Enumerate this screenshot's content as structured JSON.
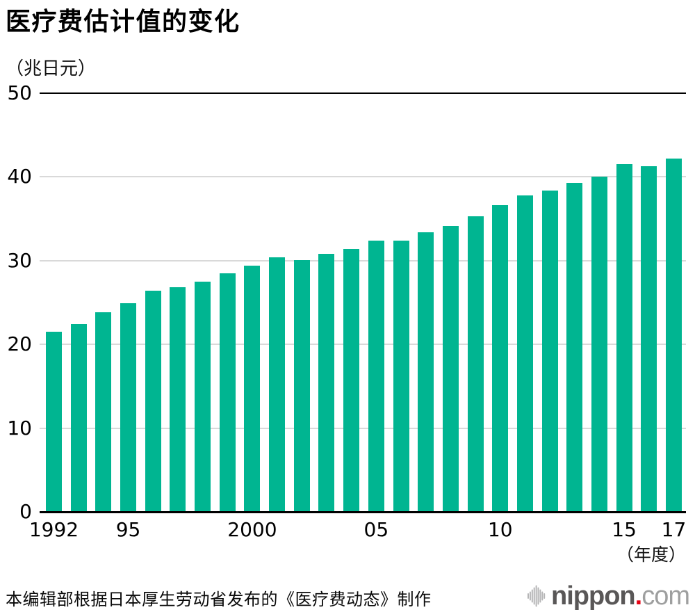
{
  "title": "医疗费估计值的变化",
  "unit_label": "（兆日元）",
  "x_axis_suffix": "（年度）",
  "footer": {
    "source": "本编辑部根据日本厚生劳动省发布的《医疗费动态》制作"
  },
  "logo": {
    "icon": "soundwave-icon",
    "name": "nippon",
    "dot": ".",
    "tld": "com",
    "colors": {
      "name": "#595757",
      "dot": "#e60012",
      "tld": "#9e9f9f",
      "icon": "#b5b5b6"
    }
  },
  "chart_data": {
    "type": "bar",
    "title": "医疗费估计值的变化",
    "ylabel": "（兆日元）",
    "xlabel": "（年度）",
    "x": [
      1992,
      1993,
      1994,
      1995,
      1996,
      1997,
      1998,
      1999,
      2000,
      2001,
      2002,
      2003,
      2004,
      2005,
      2006,
      2007,
      2008,
      2009,
      2010,
      2011,
      2012,
      2013,
      2014,
      2015,
      2016,
      2017
    ],
    "values": [
      21.5,
      22.4,
      23.8,
      24.9,
      26.4,
      26.8,
      27.5,
      28.5,
      29.4,
      30.4,
      30.1,
      30.8,
      31.4,
      32.4,
      32.4,
      33.4,
      34.1,
      35.3,
      36.6,
      37.8,
      38.4,
      39.3,
      40.0,
      41.5,
      41.3,
      42.2
    ],
    "ylim": [
      0,
      50
    ],
    "yticks": [
      0,
      10,
      20,
      30,
      40,
      50
    ],
    "xtick_labels": [
      {
        "index": 0,
        "label": "1992"
      },
      {
        "index": 3,
        "label": "95"
      },
      {
        "index": 8,
        "label": "2000"
      },
      {
        "index": 13,
        "label": "05"
      },
      {
        "index": 18,
        "label": "10"
      },
      {
        "index": 23,
        "label": "15"
      },
      {
        "index": 25,
        "label": "17"
      }
    ],
    "bar_color": "#00b591",
    "grid": "horizontal",
    "grid_color": "#d9d9d9",
    "axis_color": "#000000",
    "legend": "none"
  }
}
